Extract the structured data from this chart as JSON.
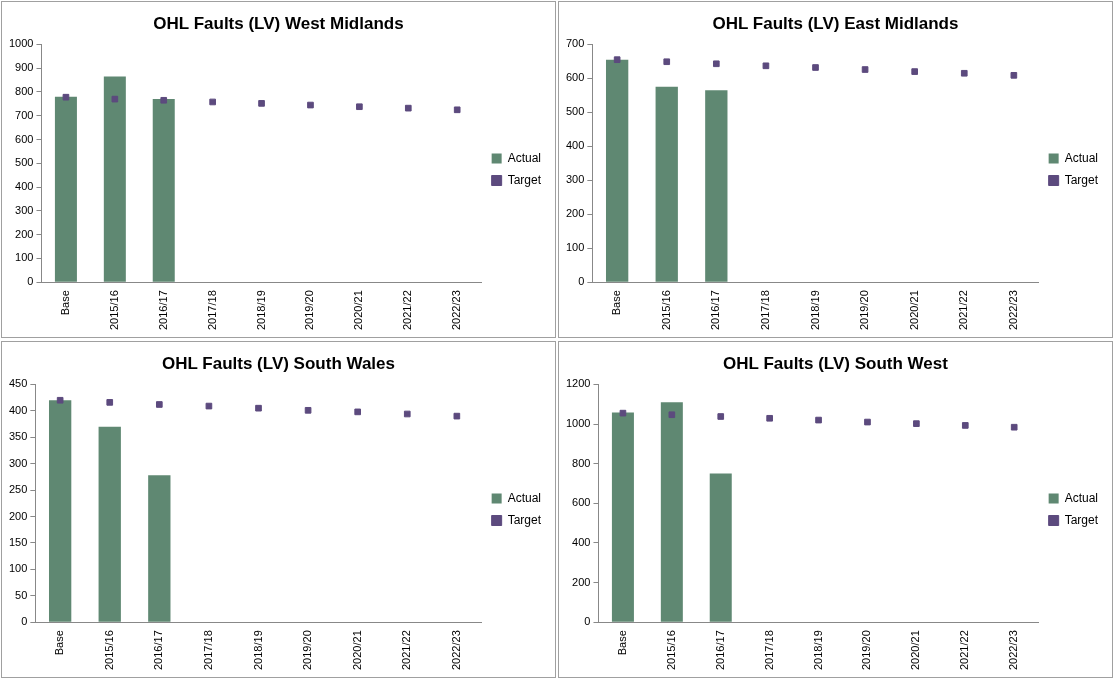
{
  "chart_data": [
    {
      "type": "bar",
      "title": "OHL Faults (LV) West Midlands",
      "categories": [
        "Base",
        "2015/16",
        "2016/17",
        "2017/18",
        "2018/19",
        "2019/20",
        "2020/21",
        "2021/22",
        "2022/23"
      ],
      "ylim": [
        0,
        1000
      ],
      "yticks": [
        0,
        100,
        200,
        300,
        400,
        500,
        600,
        700,
        800,
        900,
        1000
      ],
      "grid": false,
      "legend": "right",
      "series": [
        {
          "name": "Actual",
          "color": "#5f8872",
          "values": [
            780,
            865,
            770,
            null,
            null,
            null,
            null,
            null,
            null
          ]
        },
        {
          "name": "Target",
          "type": "scatter",
          "marker": "square",
          "color": "#5c4a7e",
          "values": [
            778,
            770,
            765,
            758,
            752,
            745,
            738,
            732,
            725
          ]
        }
      ]
    },
    {
      "type": "bar",
      "title": "OHL Faults (LV) East Midlands",
      "categories": [
        "Base",
        "2015/16",
        "2016/17",
        "2017/18",
        "2018/19",
        "2019/20",
        "2020/21",
        "2021/22",
        "2022/23"
      ],
      "ylim": [
        0,
        700
      ],
      "yticks": [
        0,
        100,
        200,
        300,
        400,
        500,
        600,
        700
      ],
      "grid": false,
      "legend": "right",
      "series": [
        {
          "name": "Actual",
          "color": "#5f8872",
          "values": [
            655,
            575,
            565,
            null,
            null,
            null,
            null,
            null,
            null
          ]
        },
        {
          "name": "Target",
          "type": "scatter",
          "marker": "square",
          "color": "#5c4a7e",
          "values": [
            655,
            649,
            643,
            637,
            632,
            626,
            620,
            615,
            609
          ]
        }
      ]
    },
    {
      "type": "bar",
      "title": "OHL Faults (LV) South Wales",
      "categories": [
        "Base",
        "2015/16",
        "2016/17",
        "2017/18",
        "2018/19",
        "2019/20",
        "2020/21",
        "2021/22",
        "2022/23"
      ],
      "ylim": [
        0,
        450
      ],
      "yticks": [
        0,
        50,
        100,
        150,
        200,
        250,
        300,
        350,
        400,
        450
      ],
      "grid": false,
      "legend": "right",
      "series": [
        {
          "name": "Actual",
          "color": "#5f8872",
          "values": [
            420,
            370,
            278,
            null,
            null,
            null,
            null,
            null,
            null
          ]
        },
        {
          "name": "Target",
          "type": "scatter",
          "marker": "square",
          "color": "#5c4a7e",
          "values": [
            420,
            416,
            412,
            409,
            405,
            401,
            398,
            394,
            390
          ]
        }
      ]
    },
    {
      "type": "bar",
      "title": "OHL Faults (LV) South West",
      "categories": [
        "Base",
        "2015/16",
        "2016/17",
        "2017/18",
        "2018/19",
        "2019/20",
        "2020/21",
        "2021/22",
        "2022/23"
      ],
      "ylim": [
        0,
        1200
      ],
      "yticks": [
        0,
        200,
        400,
        600,
        800,
        1000,
        1200
      ],
      "grid": false,
      "legend": "right",
      "series": [
        {
          "name": "Actual",
          "color": "#5f8872",
          "values": [
            1058,
            1110,
            750,
            null,
            null,
            null,
            null,
            null,
            null
          ]
        },
        {
          "name": "Target",
          "type": "scatter",
          "marker": "square",
          "color": "#5c4a7e",
          "values": [
            1055,
            1047,
            1038,
            1029,
            1020,
            1010,
            1002,
            993,
            984
          ]
        }
      ]
    }
  ]
}
